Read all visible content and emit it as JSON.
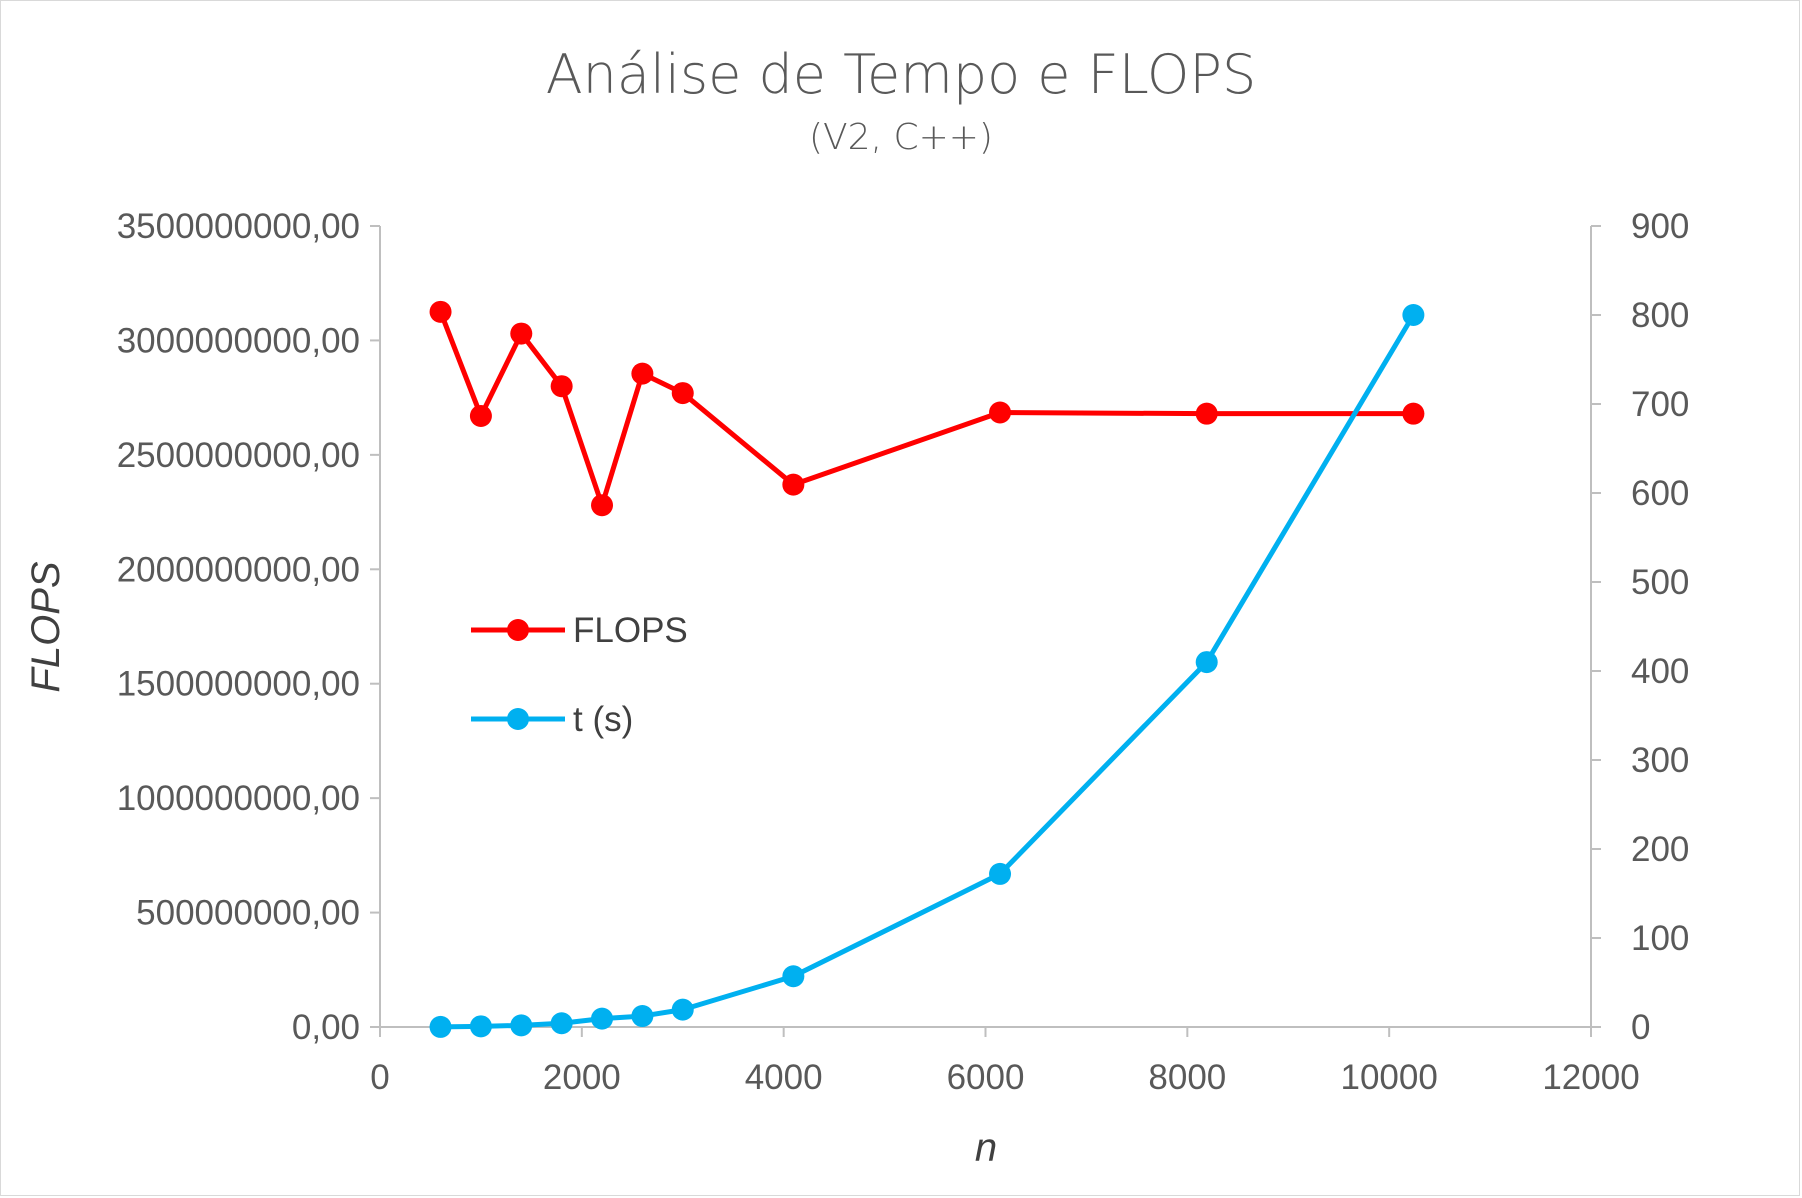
{
  "chart_data": {
    "type": "line",
    "title": "Análise de Tempo e FLOPS",
    "subtitle": "(V2, C++)",
    "xlabel": "n",
    "ylabel": "FLOPS",
    "ylabel_right": "",
    "xlim": [
      0,
      12000
    ],
    "ylim": [
      0,
      3500000000
    ],
    "ylim_right": [
      0,
      900
    ],
    "x_ticks": [
      "0",
      "2000",
      "4000",
      "6000",
      "8000",
      "10000",
      "12000"
    ],
    "y_ticks": [
      "0,00",
      "500000000,00",
      "1000000000,00",
      "1500000000,00",
      "2000000000,00",
      "2500000000,00",
      "3000000000,00",
      "3500000000,00"
    ],
    "y_ticks_right": [
      "0",
      "100",
      "200",
      "300",
      "400",
      "500",
      "600",
      "700",
      "800",
      "900"
    ],
    "grid": false,
    "legend_position": "center-left",
    "x": [
      600,
      1000,
      1400,
      1800,
      2200,
      2600,
      3000,
      4096,
      6144,
      8192,
      10240
    ],
    "series": [
      {
        "name": "FLOPS",
        "axis": "left",
        "color": "#ff0000",
        "values": [
          3125000000,
          2670000000,
          3030000000,
          2800000000,
          2280000000,
          2855000000,
          2770000000,
          2370000000,
          2685000000,
          2680000000,
          2680000000
        ]
      },
      {
        "name": "t (s)",
        "axis": "right",
        "color": "#00b0f0",
        "values": [
          0.1,
          0.75,
          1.8,
          4.2,
          9.4,
          12.3,
          19.5,
          57.0,
          172.0,
          410.0,
          800.0
        ]
      }
    ]
  }
}
